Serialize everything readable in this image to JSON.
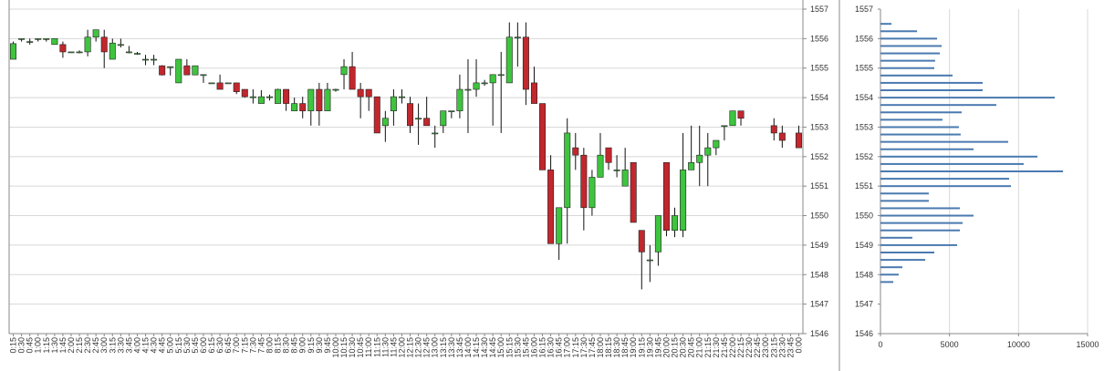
{
  "chart_data": [
    {
      "type": "candlestick",
      "categories": [
        "0:15",
        "0:30",
        "0:45",
        "1:00",
        "1:15",
        "1:30",
        "1:45",
        "2:00",
        "2:15",
        "2:30",
        "2:45",
        "3:00",
        "3:15",
        "3:30",
        "3:45",
        "4:00",
        "4:15",
        "4:30",
        "4:45",
        "5:00",
        "5:15",
        "5:30",
        "5:45",
        "6:00",
        "6:15",
        "6:30",
        "6:45",
        "7:00",
        "7:15",
        "7:30",
        "7:45",
        "8:00",
        "8:15",
        "8:30",
        "8:45",
        "9:00",
        "9:15",
        "9:30",
        "9:45",
        "10:00",
        "10:15",
        "10:30",
        "10:45",
        "11:00",
        "11:15",
        "11:30",
        "11:45",
        "12:00",
        "12:15",
        "12:30",
        "12:45",
        "13:00",
        "13:15",
        "13:30",
        "13:45",
        "14:00",
        "14:15",
        "14:30",
        "14:45",
        "15:00",
        "15:15",
        "15:30",
        "15:45",
        "16:00",
        "16:15",
        "16:30",
        "16:45",
        "17:00",
        "17:15",
        "17:30",
        "17:45",
        "18:00",
        "18:15",
        "18:30",
        "18:45",
        "19:00",
        "19:15",
        "19:30",
        "19:45",
        "20:00",
        "20:15",
        "20:30",
        "20:45",
        "21:00",
        "21:15",
        "21:30",
        "21:45",
        "22:00",
        "22:15",
        "22:30",
        "22:45",
        "23:00",
        "23:15",
        "23:30",
        "23:45",
        "0:00"
      ],
      "open": [
        1555.3,
        1556.0,
        1555.9,
        1556.0,
        1556.0,
        1555.8,
        1555.8,
        1555.55,
        1555.55,
        1555.55,
        1556.05,
        1556.05,
        1555.3,
        1555.8,
        1555.55,
        1555.5,
        1555.3,
        1555.3,
        1555.08,
        1555.05,
        1554.5,
        1555.08,
        1554.77,
        1554.78,
        1554.5,
        1554.5,
        1554.5,
        1554.5,
        1554.28,
        1554.03,
        1553.8,
        1554.03,
        1553.8,
        1554.28,
        1553.55,
        1553.8,
        1553.55,
        1554.28,
        1553.55,
        1554.28,
        1554.78,
        1555.05,
        1554.28,
        1554.28,
        1554.03,
        1553.05,
        1553.55,
        1554.03,
        1553.8,
        1553.3,
        1553.3,
        1552.8,
        1553.05,
        1553.55,
        1553.55,
        1554.28,
        1554.28,
        1554.5,
        1554.5,
        1554.78,
        1554.5,
        1556.05,
        1556.05,
        1554.5,
        1553.8,
        1551.55,
        1549.05,
        1550.27,
        1552.3,
        1552.05,
        1550.27,
        1551.3,
        1552.3,
        1551.55,
        1551.0,
        1551.8,
        1549.5,
        1548.5,
        1548.77,
        1551.8,
        1549.5,
        1549.5,
        1551.55,
        1551.8,
        1552.05,
        1552.3,
        1553.05,
        1553.05,
        1553.55,
        null,
        null,
        null,
        1553.05,
        1552.8,
        null,
        1552.8
      ],
      "high": [
        1555.9,
        1556.0,
        1556.0,
        1556.0,
        1556.0,
        1556.0,
        1555.9,
        1555.55,
        1555.6,
        1556.3,
        1556.3,
        1556.3,
        1556.0,
        1556.0,
        1555.75,
        1555.55,
        1555.45,
        1555.45,
        1555.1,
        1555.05,
        1555.3,
        1555.3,
        1555.08,
        1554.78,
        1554.5,
        1554.78,
        1554.5,
        1554.5,
        1554.28,
        1554.28,
        1554.25,
        1554.1,
        1554.3,
        1554.28,
        1554.0,
        1554.03,
        1554.28,
        1554.5,
        1554.5,
        1554.3,
        1555.3,
        1555.55,
        1554.5,
        1554.28,
        1554.03,
        1553.55,
        1554.28,
        1554.28,
        1554.03,
        1553.8,
        1554.03,
        1553.05,
        1553.55,
        1553.55,
        1554.78,
        1555.3,
        1555.3,
        1554.6,
        1554.78,
        1555.55,
        1556.55,
        1556.55,
        1556.55,
        1555.05,
        1553.8,
        1552.05,
        1550.27,
        1553.3,
        1552.8,
        1552.3,
        1551.55,
        1552.8,
        1552.3,
        1552.05,
        1552.3,
        1551.8,
        1549.5,
        1549.0,
        1550.0,
        1551.8,
        1550.27,
        1552.8,
        1553.05,
        1553.05,
        1552.8,
        1552.55,
        1553.05,
        1553.55,
        1553.55,
        null,
        null,
        null,
        1553.3,
        1553.05,
        null,
        1553.05
      ],
      "low": [
        1555.3,
        1555.9,
        1555.8,
        1555.9,
        1555.9,
        1555.8,
        1555.35,
        1555.55,
        1555.5,
        1555.4,
        1555.9,
        1555.0,
        1555.3,
        1555.7,
        1555.5,
        1555.45,
        1555.1,
        1555.1,
        1554.75,
        1554.75,
        1554.5,
        1554.77,
        1554.77,
        1554.5,
        1554.5,
        1554.28,
        1554.5,
        1554.12,
        1554.0,
        1553.8,
        1553.8,
        1553.9,
        1553.8,
        1553.55,
        1553.55,
        1553.3,
        1553.05,
        1553.05,
        1553.55,
        1554.2,
        1554.28,
        1554.28,
        1553.3,
        1553.55,
        1552.8,
        1552.5,
        1553.05,
        1553.8,
        1552.8,
        1552.4,
        1553.05,
        1552.3,
        1552.8,
        1553.3,
        1553.3,
        1552.8,
        1554.03,
        1554.4,
        1553.05,
        1552.8,
        1554.5,
        1555.05,
        1553.75,
        1553.8,
        1551.55,
        1549.05,
        1548.5,
        1549.05,
        1551.55,
        1549.5,
        1550.0,
        1551.3,
        1551.55,
        1551.3,
        1551.0,
        1549.77,
        1547.5,
        1547.75,
        1548.3,
        1549.3,
        1549.27,
        1549.27,
        1551.55,
        1551.0,
        1551.0,
        1552.05,
        1552.55,
        1553.05,
        1553.05,
        null,
        null,
        null,
        1552.55,
        1552.3,
        null,
        1552.3
      ],
      "close": [
        1555.83,
        1556.0,
        1555.9,
        1556.0,
        1556.0,
        1556.0,
        1555.55,
        1555.55,
        1555.55,
        1556.05,
        1556.3,
        1555.55,
        1555.85,
        1555.8,
        1555.55,
        1555.5,
        1555.3,
        1555.3,
        1554.77,
        1555.05,
        1555.3,
        1554.77,
        1555.08,
        1554.78,
        1554.5,
        1554.28,
        1554.5,
        1554.2,
        1554.03,
        1554.03,
        1554.03,
        1554.03,
        1554.28,
        1553.8,
        1553.8,
        1553.55,
        1554.28,
        1553.55,
        1554.28,
        1554.28,
        1555.05,
        1554.28,
        1554.03,
        1554.03,
        1552.8,
        1553.3,
        1554.03,
        1554.03,
        1553.05,
        1553.3,
        1553.05,
        1552.8,
        1553.55,
        1553.55,
        1554.28,
        1554.28,
        1554.5,
        1554.5,
        1554.78,
        1554.78,
        1556.05,
        1556.05,
        1554.28,
        1553.8,
        1551.55,
        1549.05,
        1550.27,
        1552.8,
        1552.05,
        1550.27,
        1551.3,
        1552.05,
        1551.8,
        1551.55,
        1551.55,
        1549.77,
        1548.77,
        1548.5,
        1550.0,
        1549.5,
        1550.0,
        1551.55,
        1551.8,
        1552.05,
        1552.3,
        1552.55,
        1553.05,
        1553.55,
        1553.3,
        null,
        null,
        null,
        1552.8,
        1552.55,
        null,
        1552.3
      ],
      "up_color": "#3ec43e",
      "down_color": "#c1272d",
      "ylim": [
        1546,
        1557
      ],
      "yticks": [
        1546,
        1547,
        1548,
        1549,
        1550,
        1551,
        1552,
        1553,
        1554,
        1555,
        1556,
        1557
      ],
      "grid": true
    },
    {
      "type": "barh",
      "y": [
        1556.5,
        1556.25,
        1556.0,
        1555.75,
        1555.5,
        1555.25,
        1555.0,
        1554.75,
        1554.5,
        1554.25,
        1554.0,
        1553.75,
        1553.5,
        1553.25,
        1553.0,
        1552.75,
        1552.5,
        1552.25,
        1552.0,
        1551.75,
        1551.5,
        1551.25,
        1551.0,
        1550.75,
        1550.5,
        1550.25,
        1550.0,
        1549.75,
        1549.5,
        1549.25,
        1549.0,
        1548.75,
        1548.5,
        1548.25,
        1548.0,
        1547.75
      ],
      "values": [
        800,
        2650,
        4100,
        4430,
        4300,
        3960,
        3900,
        5220,
        7400,
        7400,
        12620,
        8390,
        5880,
        4490,
        5680,
        5810,
        9250,
        6740,
        11370,
        10370,
        13220,
        9320,
        9450,
        3500,
        3500,
        5750,
        6740,
        5950,
        5750,
        2310,
        5550,
        3900,
        3240,
        1590,
        1320,
        930
      ],
      "color": "#4a7ab0",
      "ylim": [
        1546,
        1557
      ],
      "yticks": [
        1546,
        1547,
        1548,
        1549,
        1550,
        1551,
        1552,
        1553,
        1554,
        1555,
        1556,
        1557
      ],
      "xlim": [
        0,
        15000
      ],
      "xticks": [
        0,
        5000,
        10000,
        15000
      ],
      "grid": true
    }
  ]
}
